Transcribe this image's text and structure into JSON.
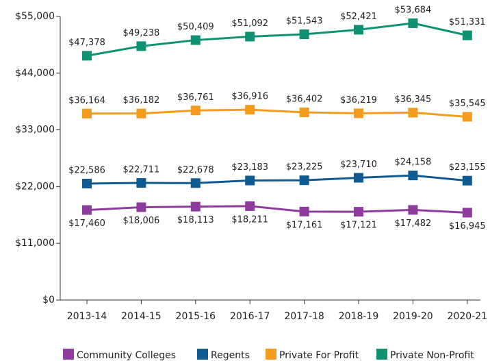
{
  "chart_data": {
    "type": "line",
    "categories": [
      "2013-14",
      "2014-15",
      "2015-16",
      "2016-17",
      "2017-18",
      "2018-19",
      "2019-20",
      "2020-21"
    ],
    "ylim": [
      0,
      55000
    ],
    "yticks": [
      {
        "value": 0,
        "label": "$0"
      },
      {
        "value": 11000,
        "label": "$11,000"
      },
      {
        "value": 22000,
        "label": "$22,000"
      },
      {
        "value": 33000,
        "label": "$33,000"
      },
      {
        "value": 44000,
        "label": "$44,000"
      },
      {
        "value": 55000,
        "label": "$55,000"
      }
    ],
    "legend": "bottom",
    "series": [
      {
        "name": "Community Colleges",
        "color": "#8e3b9e",
        "values": [
          17460,
          18006,
          18113,
          18211,
          17161,
          17121,
          17482,
          16945
        ],
        "value_labels": [
          "$17,460",
          "$18,006",
          "$18,113",
          "$18,211",
          "$17,161",
          "$17,121",
          "$17,482",
          "$16,945"
        ]
      },
      {
        "name": "Regents",
        "color": "#105a92",
        "values": [
          22586,
          22711,
          22678,
          23183,
          23225,
          23710,
          24158,
          23155
        ],
        "value_labels": [
          "$22,586",
          "$22,711",
          "$22,678",
          "$23,183",
          "$23,225",
          "$23,710",
          "$24,158",
          "$23,155"
        ]
      },
      {
        "name": "Private For Profit",
        "color": "#f39c1f",
        "values": [
          36164,
          36182,
          36761,
          36916,
          36402,
          36219,
          36345,
          35545
        ],
        "value_labels": [
          "$36,164",
          "$36,182",
          "$36,761",
          "$36,916",
          "$36,402",
          "$36,219",
          "$36,345",
          "$35,545"
        ]
      },
      {
        "name": "Private Non-Profit",
        "color": "#0f9274",
        "values": [
          47378,
          49238,
          50409,
          51092,
          51543,
          52421,
          53684,
          51331
        ],
        "value_labels": [
          "$47,378",
          "$49,238",
          "$50,409",
          "$51,092",
          "$51,543",
          "$52,421",
          "$53,684",
          "$51,331"
        ]
      }
    ]
  }
}
